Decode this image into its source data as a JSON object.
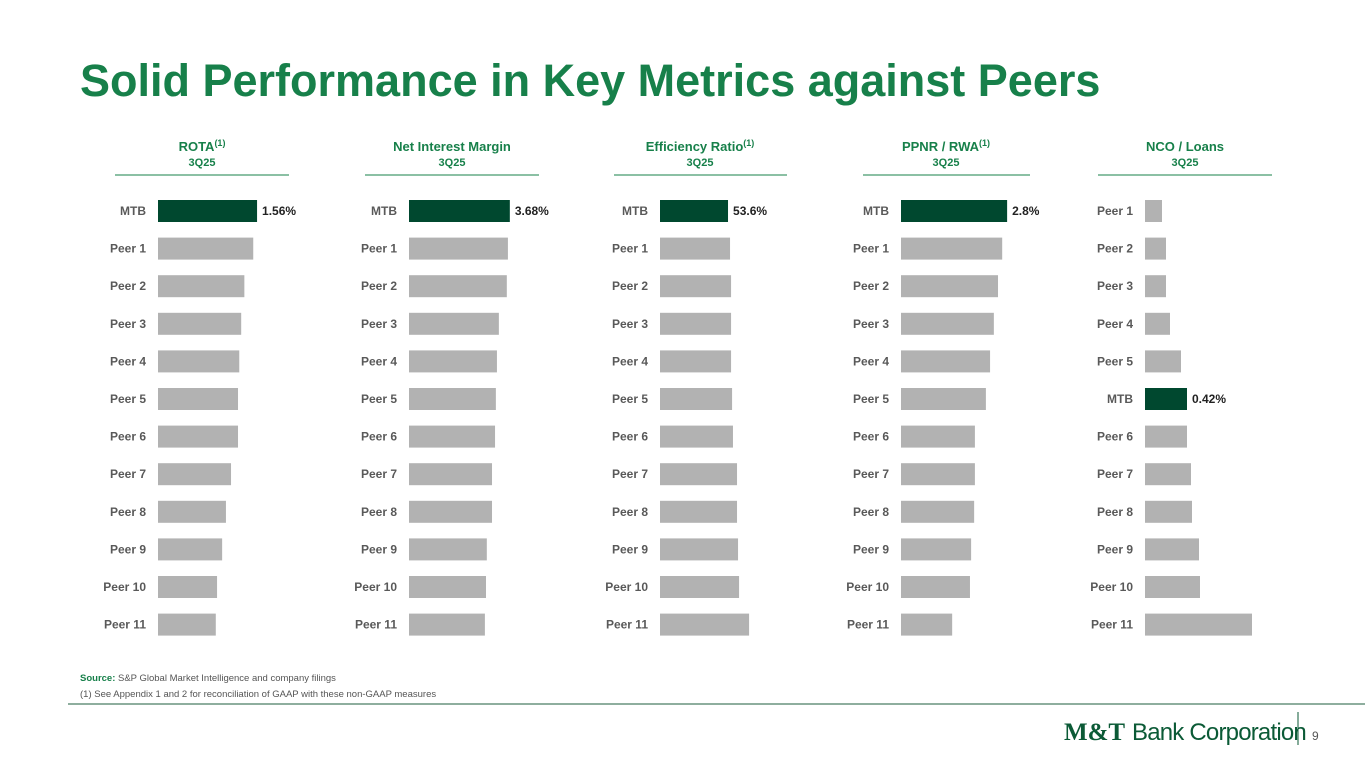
{
  "header": {
    "title": "Solid Performance in Key Metrics against Peers"
  },
  "chart_data": [
    {
      "type": "bar",
      "title": "ROTA",
      "title_sup": "(1)",
      "subtitle": "3Q25",
      "categories": [
        "MTB",
        "Peer 1",
        "Peer 2",
        "Peer 3",
        "Peer 4",
        "Peer 5",
        "Peer 6",
        "Peer 7",
        "Peer 8",
        "Peer 9",
        "Peer 10",
        "Peer 11"
      ],
      "values": [
        1.56,
        1.5,
        1.36,
        1.31,
        1.28,
        1.26,
        1.26,
        1.15,
        1.07,
        1.01,
        0.93,
        0.91
      ],
      "value_labels": [
        "1.56%",
        null,
        null,
        null,
        null,
        null,
        null,
        null,
        null,
        null,
        null,
        null
      ],
      "color": "#b2b2b2",
      "highlight_color": "#00482f",
      "highlight_category": "MTB"
    },
    {
      "type": "bar",
      "title": "Net Interest Margin",
      "subtitle": "3Q25",
      "categories": [
        "MTB",
        "Peer 1",
        "Peer 2",
        "Peer 3",
        "Peer 4",
        "Peer 5",
        "Peer 6",
        "Peer 7",
        "Peer 8",
        "Peer 9",
        "Peer 10",
        "Peer 11"
      ],
      "values": [
        3.68,
        3.61,
        3.57,
        3.28,
        3.21,
        3.17,
        3.14,
        3.03,
        3.03,
        2.84,
        2.81,
        2.77
      ],
      "value_labels": [
        "3.68%",
        null,
        null,
        null,
        null,
        null,
        null,
        null,
        null,
        null,
        null,
        null
      ],
      "color": "#b2b2b2",
      "highlight_color": "#00482f",
      "highlight_category": "MTB"
    },
    {
      "type": "bar",
      "title": "Efficiency Ratio",
      "title_sup": "(1)",
      "subtitle": "3Q25",
      "categories": [
        "MTB",
        "Peer 1",
        "Peer 2",
        "Peer 3",
        "Peer 4",
        "Peer 5",
        "Peer 6",
        "Peer 7",
        "Peer 8",
        "Peer 9",
        "Peer 10",
        "Peer 11"
      ],
      "values": [
        53.6,
        55.2,
        56.0,
        56.0,
        56.0,
        56.8,
        57.5,
        60.7,
        60.7,
        61.5,
        62.3,
        70.2
      ],
      "value_labels": [
        "53.6%",
        null,
        null,
        null,
        null,
        null,
        null,
        null,
        null,
        null,
        null,
        null
      ],
      "color": "#b2b2b2",
      "highlight_color": "#00482f",
      "highlight_category": "MTB"
    },
    {
      "type": "bar",
      "title": "PPNR / RWA",
      "title_sup": "(1)",
      "subtitle": "3Q25",
      "categories": [
        "MTB",
        "Peer 1",
        "Peer 2",
        "Peer 3",
        "Peer 4",
        "Peer 5",
        "Peer 6",
        "Peer 7",
        "Peer 8",
        "Peer 9",
        "Peer 10",
        "Peer 11"
      ],
      "values": [
        2.8,
        2.67,
        2.56,
        2.45,
        2.35,
        2.24,
        1.95,
        1.95,
        1.93,
        1.85,
        1.82,
        1.35
      ],
      "value_labels": [
        "2.8%",
        null,
        null,
        null,
        null,
        null,
        null,
        null,
        null,
        null,
        null,
        null
      ],
      "color": "#b2b2b2",
      "highlight_color": "#00482f",
      "highlight_category": "MTB"
    },
    {
      "type": "bar",
      "title": "NCO / Loans",
      "subtitle": "3Q25",
      "categories": [
        "Peer 1",
        "Peer 2",
        "Peer 3",
        "Peer 4",
        "Peer 5",
        "MTB",
        "Peer 6",
        "Peer 7",
        "Peer 8",
        "Peer 9",
        "Peer 10",
        "Peer 11"
      ],
      "values": [
        0.17,
        0.21,
        0.21,
        0.25,
        0.36,
        0.42,
        0.42,
        0.46,
        0.47,
        0.54,
        0.55,
        1.07
      ],
      "value_labels": [
        null,
        null,
        null,
        null,
        null,
        "0.42%",
        null,
        null,
        null,
        null,
        null,
        null
      ],
      "color": "#b2b2b2",
      "highlight_color": "#00482f",
      "highlight_category": "MTB"
    }
  ],
  "footer": {
    "source_label": "Source:",
    "source_text": " S&P Global Market Intelligence and company filings",
    "note": "(1) See Appendix 1 and 2 for reconciliation of GAAP with these non-GAAP measures",
    "logo_mark": "M&T",
    "logo_text": "Bank Corporation",
    "page_number": "9"
  }
}
